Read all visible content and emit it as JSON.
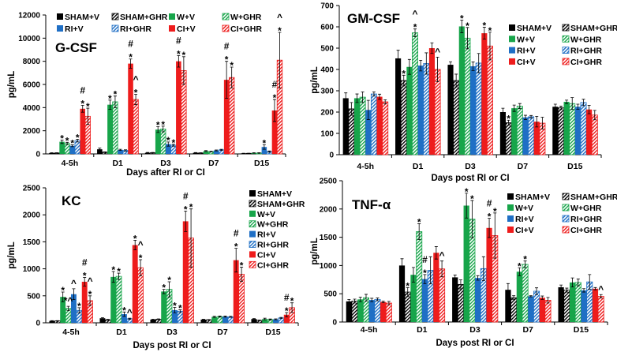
{
  "series": [
    {
      "name": "SHAM+V",
      "color": "#000000",
      "hatched": false
    },
    {
      "name": "SHAM+GHR",
      "color": "#000000",
      "hatched": true
    },
    {
      "name": "W+V",
      "color": "#17a54a",
      "hatched": false
    },
    {
      "name": "W+GHR",
      "color": "#17a54a",
      "hatched": true
    },
    {
      "name": "RI+V",
      "color": "#1f6fc5",
      "hatched": false
    },
    {
      "name": "RI+GHR",
      "color": "#1f6fc5",
      "hatched": true
    },
    {
      "name": "CI+V",
      "color": "#ee1c1c",
      "hatched": false
    },
    {
      "name": "CI+GHR",
      "color": "#ee1c1c",
      "hatched": true
    }
  ],
  "chart_data": [
    {
      "type": "bar",
      "title": "G-CSF",
      "xlabel": "Days after RI or CI",
      "ylabel": "pg/mL",
      "categories": [
        "4-5h",
        "D1",
        "D3",
        "D7",
        "D15"
      ],
      "ylim": [
        0,
        12000
      ],
      "yticks": [
        0,
        2000,
        4000,
        6000,
        8000,
        10000,
        12000
      ],
      "values": [
        [
          80,
          80,
          1050,
          900,
          700,
          1150,
          3900,
          3250
        ],
        [
          400,
          150,
          4250,
          4500,
          350,
          300,
          7800,
          4700
        ],
        [
          100,
          100,
          2100,
          2150,
          850,
          750,
          8000,
          7200
        ],
        [
          100,
          80,
          250,
          200,
          300,
          350,
          6400,
          6600
        ],
        [
          50,
          50,
          80,
          80,
          600,
          200,
          3750,
          8100
        ]
      ],
      "errors": [
        [
          20,
          20,
          150,
          100,
          80,
          120,
          300,
          700
        ],
        [
          100,
          30,
          400,
          500,
          50,
          60,
          400,
          450
        ],
        [
          30,
          30,
          250,
          250,
          180,
          80,
          500,
          1200
        ],
        [
          20,
          20,
          40,
          30,
          40,
          50,
          1600,
          900
        ],
        [
          10,
          10,
          20,
          20,
          200,
          50,
          950,
          2400
        ]
      ],
      "annotations": [
        {
          "g": 0,
          "s": 2,
          "marks": [
            "*"
          ]
        },
        {
          "g": 0,
          "s": 3,
          "marks": [
            "*"
          ]
        },
        {
          "g": 0,
          "s": 4,
          "marks": [
            "*"
          ]
        },
        {
          "g": 0,
          "s": 5,
          "marks": [
            "*"
          ]
        },
        {
          "g": 0,
          "s": 6,
          "marks": [
            "#",
            "*"
          ]
        },
        {
          "g": 0,
          "s": 7,
          "marks": [
            "*"
          ]
        },
        {
          "g": 1,
          "s": 2,
          "marks": [
            "*"
          ]
        },
        {
          "g": 1,
          "s": 3,
          "marks": [
            "*"
          ]
        },
        {
          "g": 1,
          "s": 6,
          "marks": [
            "#",
            "*"
          ]
        },
        {
          "g": 1,
          "s": 7,
          "marks": [
            "^",
            "*"
          ]
        },
        {
          "g": 2,
          "s": 2,
          "marks": [
            "*"
          ]
        },
        {
          "g": 2,
          "s": 3,
          "marks": [
            "*"
          ]
        },
        {
          "g": 2,
          "s": 4,
          "marks": [
            "*"
          ]
        },
        {
          "g": 2,
          "s": 5,
          "marks": [
            "*"
          ]
        },
        {
          "g": 2,
          "s": 6,
          "marks": [
            "#",
            "*"
          ]
        },
        {
          "g": 2,
          "s": 7,
          "marks": [
            "*"
          ]
        },
        {
          "g": 3,
          "s": 6,
          "marks": [
            "#",
            "*"
          ]
        },
        {
          "g": 3,
          "s": 7,
          "marks": [
            "*"
          ]
        },
        {
          "g": 4,
          "s": 4,
          "marks": [
            "*"
          ]
        },
        {
          "g": 4,
          "s": 6,
          "marks": [
            "#",
            "*"
          ]
        },
        {
          "g": 4,
          "s": 7,
          "marks": [
            "^",
            "*"
          ]
        }
      ],
      "legend": "top"
    },
    {
      "type": "bar",
      "title": "GM-CSF",
      "xlabel": "Days post RI or CI",
      "ylabel": "pg/mL",
      "categories": [
        "4-5h",
        "D1",
        "D3",
        "D7",
        "D15"
      ],
      "ylim": [
        0,
        700
      ],
      "yticks": [
        0,
        100,
        200,
        300,
        400,
        500,
        600,
        700
      ],
      "values": [
        [
          265,
          215,
          265,
          270,
          210,
          285,
          272,
          248
        ],
        [
          452,
          348,
          412,
          572,
          418,
          428,
          500,
          400
        ],
        [
          422,
          348,
          602,
          547,
          415,
          430,
          570,
          510
        ],
        [
          200,
          150,
          218,
          228,
          175,
          178,
          155,
          148
        ],
        [
          225,
          220,
          248,
          240,
          225,
          245,
          212,
          186
        ]
      ],
      "errors": [
        [
          25,
          30,
          20,
          25,
          45,
          10,
          12,
          10
        ],
        [
          38,
          25,
          35,
          18,
          25,
          50,
          25,
          58
        ],
        [
          14,
          30,
          30,
          50,
          20,
          45,
          28,
          65
        ],
        [
          18,
          12,
          15,
          12,
          10,
          6,
          25,
          28
        ],
        [
          12,
          8,
          8,
          28,
          12,
          15,
          20,
          22
        ]
      ],
      "annotations": [
        {
          "g": 1,
          "s": 1,
          "marks": [
            "*"
          ]
        },
        {
          "g": 1,
          "s": 3,
          "marks": [
            "^",
            "*"
          ]
        },
        {
          "g": 1,
          "s": 7,
          "marks": [
            "^"
          ]
        },
        {
          "g": 2,
          "s": 2,
          "marks": [
            "*"
          ]
        },
        {
          "g": 2,
          "s": 3,
          "marks": [
            "*"
          ]
        },
        {
          "g": 2,
          "s": 6,
          "marks": [
            "*"
          ]
        },
        {
          "g": 2,
          "s": 7,
          "marks": [
            "*"
          ]
        },
        {
          "g": 3,
          "s": 1,
          "marks": [
            "*"
          ]
        }
      ],
      "legend": "top-right"
    },
    {
      "type": "bar",
      "title": "KC",
      "xlabel": "Days post RI or CI",
      "ylabel": "pg/mL",
      "categories": [
        "4-5h",
        "D1",
        "D3",
        "D7",
        "D15"
      ],
      "ylim": [
        0,
        2500
      ],
      "yticks": [
        0,
        500,
        1000,
        1500,
        2000,
        2500
      ],
      "values": [
        [
          35,
          35,
          480,
          265,
          530,
          230,
          760,
          410
        ],
        [
          85,
          55,
          850,
          860,
          160,
          75,
          1440,
          1020
        ],
        [
          60,
          65,
          580,
          620,
          235,
          215,
          1880,
          1570
        ],
        [
          60,
          55,
          110,
          115,
          115,
          110,
          1160,
          900
        ],
        [
          70,
          45,
          70,
          60,
          65,
          90,
          150,
          280
        ]
      ],
      "errors": [
        [
          5,
          5,
          90,
          40,
          100,
          50,
          80,
          90
        ],
        [
          10,
          8,
          100,
          60,
          40,
          10,
          90,
          150
        ],
        [
          8,
          8,
          40,
          140,
          50,
          25,
          190,
          540
        ],
        [
          5,
          5,
          10,
          10,
          10,
          10,
          220,
          130
        ],
        [
          8,
          5,
          15,
          10,
          8,
          10,
          40,
          90
        ]
      ],
      "annotations": [
        {
          "g": 0,
          "s": 2,
          "marks": [
            "*"
          ]
        },
        {
          "g": 0,
          "s": 3,
          "marks": [
            "*^"
          ]
        },
        {
          "g": 0,
          "s": 4,
          "marks": [
            "^"
          ]
        },
        {
          "g": 0,
          "s": 5,
          "marks": [
            "*"
          ]
        },
        {
          "g": 0,
          "s": 6,
          "marks": [
            "#",
            "*"
          ]
        },
        {
          "g": 0,
          "s": 7,
          "marks": [
            "^",
            "*"
          ]
        },
        {
          "g": 1,
          "s": 2,
          "marks": [
            "*"
          ]
        },
        {
          "g": 1,
          "s": 3,
          "marks": [
            "*"
          ]
        },
        {
          "g": 1,
          "s": 4,
          "marks": [
            "*"
          ]
        },
        {
          "g": 1,
          "s": 5,
          "marks": [
            "^"
          ]
        },
        {
          "g": 1,
          "s": 6,
          "marks": [
            "*"
          ]
        },
        {
          "g": 1,
          "s": 7,
          "marks": [
            "^",
            "*"
          ]
        },
        {
          "g": 2,
          "s": 2,
          "marks": [
            "*"
          ]
        },
        {
          "g": 2,
          "s": 3,
          "marks": [
            "*"
          ]
        },
        {
          "g": 2,
          "s": 4,
          "marks": [
            "*"
          ]
        },
        {
          "g": 2,
          "s": 5,
          "marks": [
            "*"
          ]
        },
        {
          "g": 2,
          "s": 6,
          "marks": [
            "#",
            "*"
          ]
        },
        {
          "g": 2,
          "s": 7,
          "marks": [
            "*"
          ]
        },
        {
          "g": 3,
          "s": 6,
          "marks": [
            "#",
            "*"
          ]
        },
        {
          "g": 3,
          "s": 7,
          "marks": [
            "*"
          ]
        },
        {
          "g": 4,
          "s": 6,
          "marks": [
            "#",
            "*"
          ]
        },
        {
          "g": 4,
          "s": 7,
          "marks": [
            "*"
          ]
        }
      ],
      "legend": "right"
    },
    {
      "type": "bar",
      "title": "TNF-α",
      "xlabel": "Days post RI or CI",
      "ylabel": "pg/mL",
      "categories": [
        "4-5h",
        "D1",
        "D3",
        "D7",
        "D15"
      ],
      "ylim": [
        0,
        2500
      ],
      "yticks": [
        0,
        500,
        1000,
        1500,
        2000,
        2500
      ],
      "values": [
        [
          365,
          370,
          400,
          430,
          390,
          400,
          355,
          335
        ],
        [
          1000,
          530,
          835,
          1600,
          760,
          915,
          1225,
          940
        ],
        [
          790,
          665,
          2060,
          1820,
          780,
          945,
          1665,
          1530
        ],
        [
          570,
          430,
          890,
          1020,
          455,
          545,
          430,
          385
        ],
        [
          615,
          565,
          700,
          700,
          560,
          710,
          590,
          455
        ]
      ],
      "errors": [
        [
          35,
          35,
          40,
          60,
          30,
          25,
          15,
          30
        ],
        [
          120,
          80,
          130,
          140,
          80,
          240,
          110,
          140
        ],
        [
          40,
          80,
          220,
          330,
          40,
          210,
          170,
          400
        ],
        [
          110,
          35,
          70,
          60,
          10,
          60,
          30,
          50
        ],
        [
          40,
          35,
          80,
          60,
          30,
          130,
          20,
          30
        ]
      ],
      "annotations": [
        {
          "g": 1,
          "s": 1,
          "marks": [
            "*"
          ]
        },
        {
          "g": 1,
          "s": 3,
          "marks": [
            "*"
          ]
        },
        {
          "g": 1,
          "s": 4,
          "marks": [
            "#",
            "*"
          ]
        },
        {
          "g": 1,
          "s": 7,
          "marks": [
            "^"
          ]
        },
        {
          "g": 2,
          "s": 2,
          "marks": [
            "*"
          ]
        },
        {
          "g": 2,
          "s": 3,
          "marks": [
            "*"
          ]
        },
        {
          "g": 2,
          "s": 6,
          "marks": [
            "#",
            "*"
          ]
        },
        {
          "g": 2,
          "s": 7,
          "marks": [
            "*"
          ]
        },
        {
          "g": 3,
          "s": 2,
          "marks": [
            "*"
          ]
        },
        {
          "g": 3,
          "s": 3,
          "marks": [
            "*"
          ]
        },
        {
          "g": 4,
          "s": 7,
          "marks": [
            "^"
          ]
        }
      ],
      "legend": "top-right"
    }
  ]
}
